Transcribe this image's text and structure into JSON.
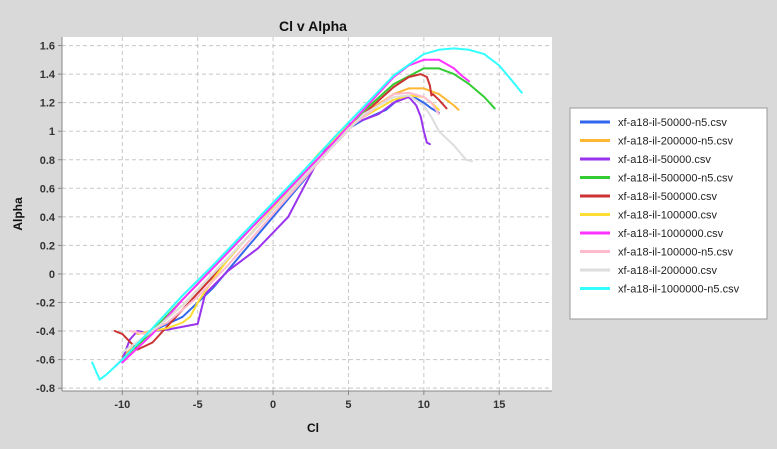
{
  "chart_data": {
    "type": "line",
    "title": "Cl v Alpha",
    "xlabel": "Cl",
    "ylabel": "Alpha",
    "xlim": [
      -14,
      18.5
    ],
    "ylim": [
      -0.82,
      1.66
    ],
    "xticks": [
      -10,
      -5,
      0,
      5,
      10,
      15
    ],
    "yticks": [
      -0.8,
      -0.6,
      -0.4,
      -0.2,
      0,
      0.2,
      0.4,
      0.6,
      0.8,
      1,
      1.2,
      1.4,
      1.6
    ],
    "grid": true,
    "legend_position": "right",
    "series": [
      {
        "name": "xf-a18-il-50000-n5.csv",
        "color": "#3366ee",
        "x": [
          -9.0,
          -8.0,
          -6.0,
          -4.0,
          -2.0,
          0.0,
          2.0,
          4.0,
          5.0,
          6.0,
          7.5,
          8.5,
          9.0,
          9.5,
          10.0,
          10.5,
          11.0
        ],
        "y": [
          -0.42,
          -0.4,
          -0.3,
          -0.1,
          0.15,
          0.4,
          0.65,
          0.92,
          1.02,
          1.08,
          1.15,
          1.24,
          1.25,
          1.23,
          1.2,
          1.16,
          1.13
        ]
      },
      {
        "name": "xf-a18-il-200000-n5.csv",
        "color": "#ffb833",
        "x": [
          -10.0,
          -8.0,
          -6.0,
          -4.0,
          -2.0,
          0.0,
          2.0,
          4.0,
          6.0,
          8.0,
          9.0,
          10.0,
          11.0,
          12.0,
          12.3
        ],
        "y": [
          -0.58,
          -0.4,
          -0.22,
          0.0,
          0.22,
          0.45,
          0.68,
          0.9,
          1.12,
          1.26,
          1.3,
          1.3,
          1.26,
          1.18,
          1.15
        ]
      },
      {
        "name": "xf-a18-il-50000.csv",
        "color": "#9933ee",
        "x": [
          -10.5,
          -10.0,
          -9.5,
          -9.0,
          -8.5,
          -8.0,
          -7.0,
          -5.0,
          -4.5,
          -3.0,
          -1.0,
          1.0,
          2.0,
          3.0,
          4.0,
          5.0,
          6.0,
          7.0,
          8.0,
          9.0,
          9.5,
          9.8,
          10.0,
          10.2,
          10.4
        ],
        "y": [
          -0.65,
          -0.6,
          -0.46,
          -0.4,
          -0.41,
          -0.4,
          -0.39,
          -0.35,
          -0.14,
          0.02,
          0.18,
          0.4,
          0.6,
          0.8,
          0.95,
          1.05,
          1.08,
          1.12,
          1.2,
          1.24,
          1.18,
          1.1,
          1.0,
          0.92,
          0.91
        ]
      },
      {
        "name": "xf-a18-il-500000-n5.csv",
        "color": "#33cc33",
        "x": [
          -10.0,
          -8.0,
          -6.0,
          -4.0,
          -2.0,
          0.0,
          2.0,
          4.0,
          6.0,
          8.0,
          10.0,
          11.0,
          12.0,
          13.0,
          14.0,
          14.7
        ],
        "y": [
          -0.6,
          -0.4,
          -0.18,
          0.04,
          0.26,
          0.48,
          0.7,
          0.92,
          1.14,
          1.33,
          1.44,
          1.44,
          1.4,
          1.33,
          1.24,
          1.16
        ]
      },
      {
        "name": "xf-a18-il-500000.csv",
        "color": "#cc3333",
        "x": [
          -10.5,
          -10.0,
          -9.0,
          -8.0,
          -6.0,
          -4.0,
          -2.0,
          0.0,
          2.0,
          4.0,
          6.0,
          8.0,
          9.0,
          9.8,
          10.2,
          10.4,
          10.5,
          10.6,
          11.0,
          11.5
        ],
        "y": [
          -0.4,
          -0.42,
          -0.53,
          -0.48,
          -0.25,
          -0.02,
          0.22,
          0.45,
          0.68,
          0.9,
          1.12,
          1.31,
          1.38,
          1.4,
          1.38,
          1.32,
          1.25,
          1.26,
          1.22,
          1.16
        ]
      },
      {
        "name": "xf-a18-il-100000.csv",
        "color": "#ffdd33",
        "x": [
          -9.0,
          -8.0,
          -7.0,
          -6.0,
          -5.5,
          -5.0,
          -4.0,
          -3.0,
          -1.0,
          1.0,
          3.0,
          5.0,
          7.0,
          8.0,
          9.0,
          10.0,
          10.5,
          11.0
        ],
        "y": [
          -0.42,
          -0.4,
          -0.38,
          -0.34,
          -0.3,
          -0.2,
          -0.04,
          0.1,
          0.34,
          0.58,
          0.84,
          1.04,
          1.16,
          1.22,
          1.25,
          1.24,
          1.2,
          1.15
        ]
      },
      {
        "name": "xf-a18-il-1000000.csv",
        "color": "#ff33ff",
        "x": [
          -10.0,
          -8.0,
          -6.0,
          -4.0,
          -2.0,
          0.0,
          2.0,
          4.0,
          6.0,
          8.0,
          9.0,
          10.0,
          11.0,
          12.0,
          12.5,
          13.0
        ],
        "y": [
          -0.62,
          -0.42,
          -0.18,
          0.04,
          0.26,
          0.48,
          0.7,
          0.92,
          1.15,
          1.38,
          1.46,
          1.5,
          1.5,
          1.44,
          1.39,
          1.35
        ]
      },
      {
        "name": "xf-a18-il-100000-n5.csv",
        "color": "#ffbbcc",
        "x": [
          -9.5,
          -8.5,
          -7.0,
          -5.0,
          -3.0,
          -1.0,
          1.0,
          3.0,
          5.0,
          7.0,
          8.0,
          9.0,
          10.0,
          10.5,
          11.0
        ],
        "y": [
          -0.4,
          -0.42,
          -0.34,
          -0.16,
          0.06,
          0.3,
          0.54,
          0.78,
          1.02,
          1.18,
          1.26,
          1.27,
          1.24,
          1.2,
          1.12
        ]
      },
      {
        "name": "xf-a18-il-200000.csv",
        "color": "#dddddd",
        "x": [
          -10.0,
          -8.0,
          -6.0,
          -4.0,
          -2.0,
          0.0,
          2.0,
          4.0,
          6.0,
          8.0,
          9.0,
          10.0,
          10.5,
          11.0,
          12.0,
          12.8,
          13.2
        ],
        "y": [
          -0.55,
          -0.4,
          -0.22,
          0.0,
          0.22,
          0.45,
          0.68,
          0.9,
          1.12,
          1.24,
          1.25,
          1.18,
          1.1,
          1.0,
          0.9,
          0.8,
          0.79
        ]
      },
      {
        "name": "xf-a18-il-1000000-n5.csv",
        "color": "#33ffff",
        "x": [
          -12.0,
          -11.5,
          -11.0,
          -10.0,
          -8.0,
          -6.0,
          -4.0,
          -2.0,
          0.0,
          2.0,
          4.0,
          6.0,
          8.0,
          10.0,
          11.0,
          12.0,
          13.0,
          14.0,
          15.0,
          15.8,
          16.5
        ],
        "y": [
          -0.62,
          -0.74,
          -0.7,
          -0.6,
          -0.38,
          -0.15,
          0.06,
          0.28,
          0.5,
          0.72,
          0.95,
          1.17,
          1.39,
          1.54,
          1.57,
          1.58,
          1.57,
          1.54,
          1.46,
          1.36,
          1.27
        ]
      }
    ]
  }
}
